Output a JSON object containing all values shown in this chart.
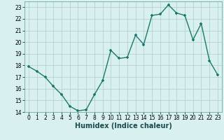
{
  "x": [
    0,
    1,
    2,
    3,
    4,
    5,
    6,
    7,
    8,
    9,
    10,
    11,
    12,
    13,
    14,
    15,
    16,
    17,
    18,
    19,
    20,
    21,
    22,
    23
  ],
  "y": [
    17.9,
    17.5,
    17.0,
    16.2,
    15.5,
    14.5,
    14.1,
    14.2,
    15.5,
    16.7,
    19.3,
    18.6,
    18.7,
    20.6,
    19.8,
    22.3,
    22.4,
    23.2,
    22.5,
    22.3,
    20.2,
    21.6,
    18.4,
    17.2
  ],
  "line_color": "#1a7a6a",
  "marker": "+",
  "bg_color": "#d8f0f0",
  "grid_color": "#b0cccc",
  "xlabel": "Humidex (Indice chaleur)",
  "ylim": [
    14,
    23.5
  ],
  "xlim": [
    -0.5,
    23.5
  ],
  "yticks": [
    14,
    15,
    16,
    17,
    18,
    19,
    20,
    21,
    22,
    23
  ],
  "xticks": [
    0,
    1,
    2,
    3,
    4,
    5,
    6,
    7,
    8,
    9,
    10,
    11,
    12,
    13,
    14,
    15,
    16,
    17,
    18,
    19,
    20,
    21,
    22,
    23
  ],
  "tick_fontsize": 5.5,
  "xlabel_fontsize": 7,
  "xlabel_fontweight": "bold",
  "xlabel_color": "#1a4a4a"
}
